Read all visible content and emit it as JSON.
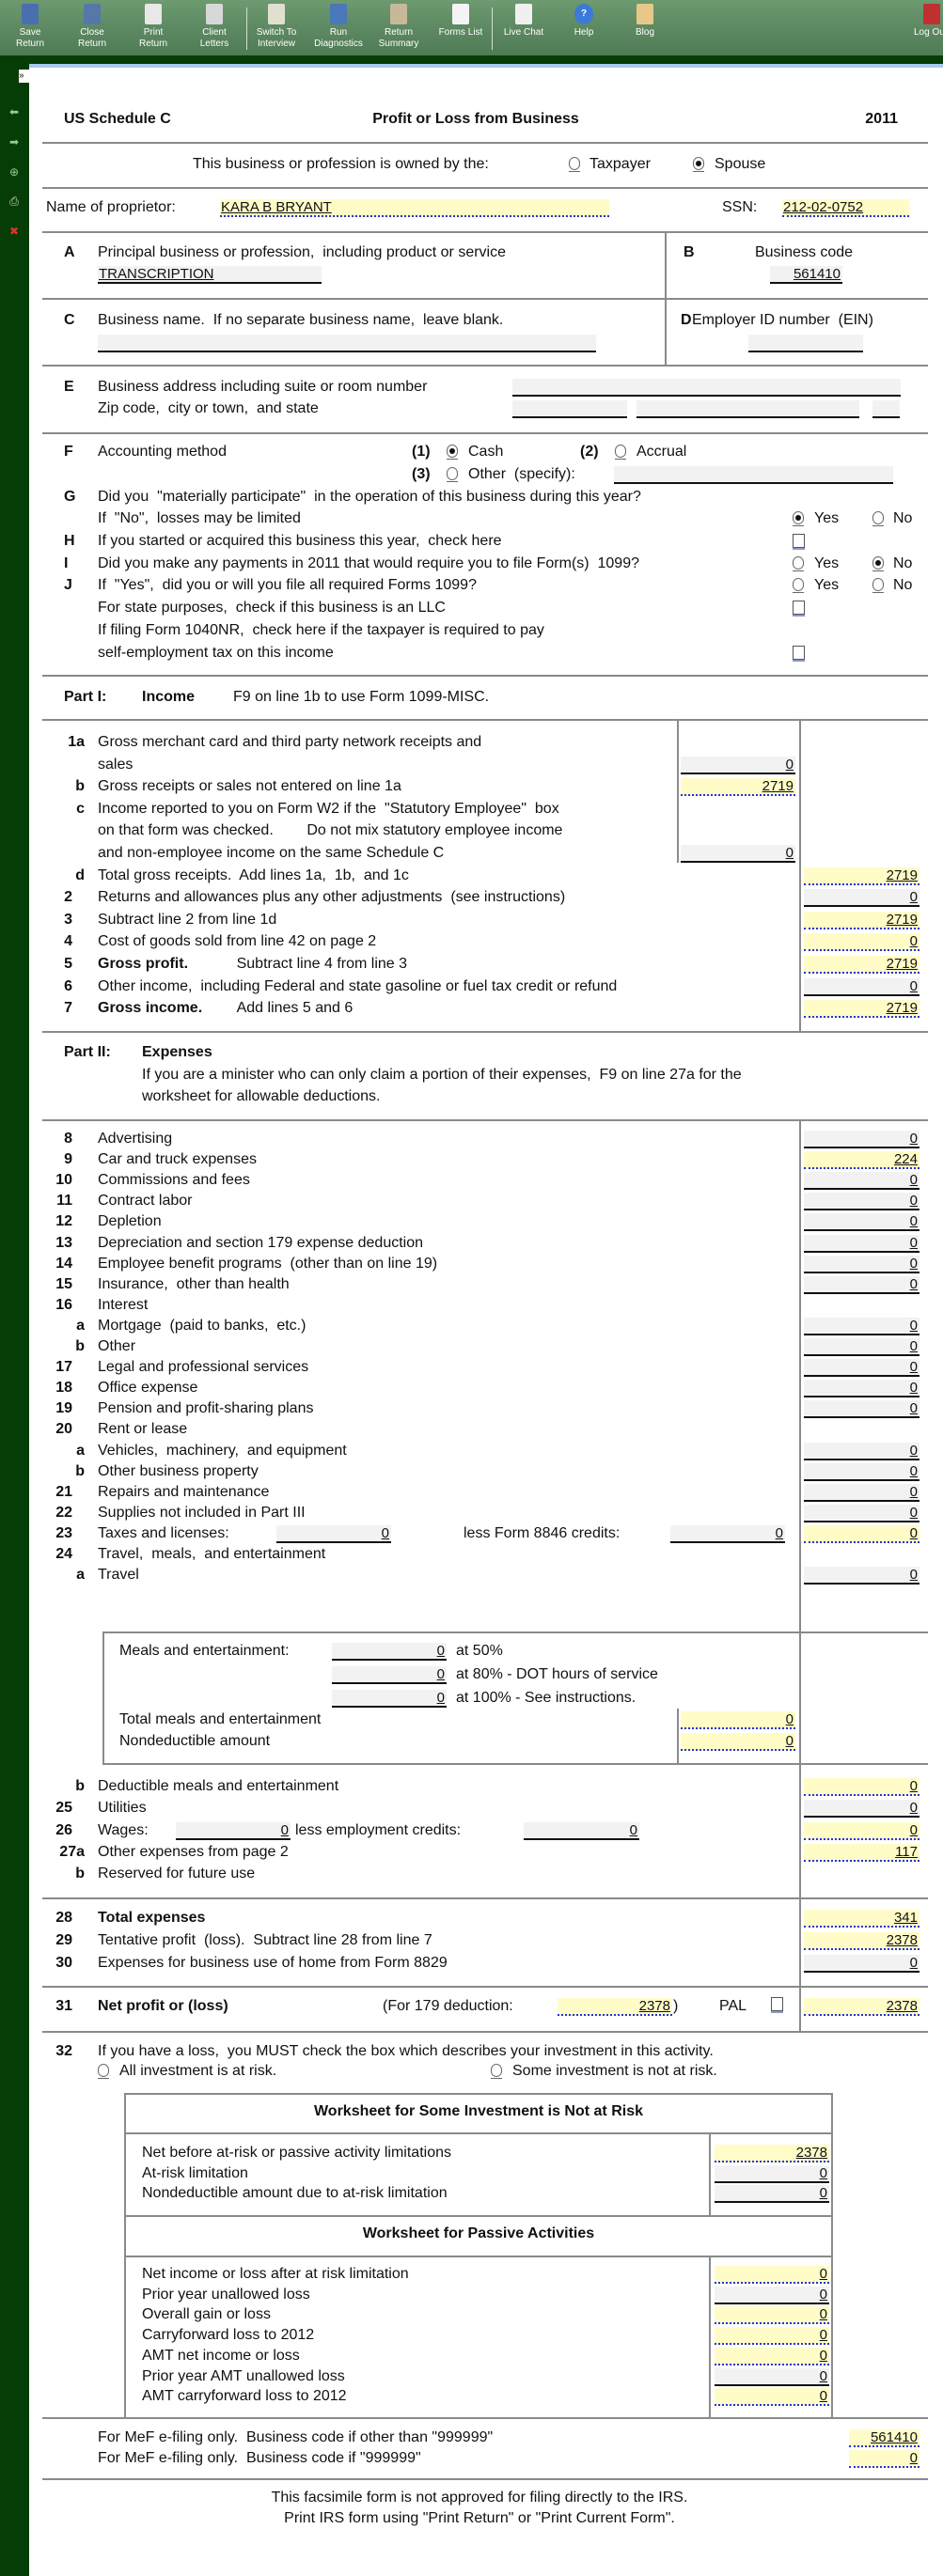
{
  "toolbar": {
    "buttons": [
      {
        "lines": [
          "Save",
          "Return"
        ],
        "icon": "save-icon",
        "color": "#4a6fb0"
      },
      {
        "lines": [
          "Close",
          "Return"
        ],
        "icon": "close-return-icon",
        "color": "#5577aa"
      },
      {
        "lines": [
          "Print",
          "Return"
        ],
        "icon": "print-icon",
        "color": "#e8e8e8"
      },
      {
        "lines": [
          "Client",
          "Letters"
        ],
        "icon": "envelope-icon",
        "color": "#d8d8d8"
      },
      {
        "lines": [
          "Switch To",
          "Interview"
        ],
        "icon": "switch-interview-icon",
        "color": "#e0e0d0"
      },
      {
        "lines": [
          "Run",
          "Diagnostics"
        ],
        "icon": "diagnostics-icon",
        "color": "#4a78b8"
      },
      {
        "lines": [
          "Return",
          "Summary"
        ],
        "icon": "clipboard-icon",
        "color": "#c8b89a"
      },
      {
        "lines": [
          "Forms List",
          ""
        ],
        "icon": "forms-list-icon",
        "color": "#f4f4f4"
      },
      {
        "lines": [
          "Live Chat",
          ""
        ],
        "icon": "chat-icon",
        "color": "#f0f0f0"
      },
      {
        "lines": [
          "Help",
          ""
        ],
        "icon": "help-icon",
        "color": "#3a7ad8"
      },
      {
        "lines": [
          "Blog",
          ""
        ],
        "icon": "blog-icon",
        "color": "#e8c888"
      }
    ],
    "logout": "Log Out"
  },
  "sidebar": {
    "expand": "»",
    "icons": [
      "back-arrow-icon",
      "forward-arrow-icon",
      "add-icon",
      "print-icon",
      "delete-icon"
    ]
  },
  "form": {
    "schedule": "US Schedule C",
    "title": "Profit or Loss from Business",
    "year": "2011",
    "owner": {
      "label": "This business or profession is owned by the:",
      "options": [
        "Taxpayer",
        "Spouse"
      ],
      "selected": "Spouse"
    },
    "proprietor": {
      "label": "Name of proprietor:",
      "value": "KARA B BRYANT",
      "ssn_label": "SSN:",
      "ssn": "212-02-0752"
    },
    "A": {
      "letter": "A",
      "label": "Principal business or profession,  including product or service",
      "value": "TRANSCRIPTION"
    },
    "B": {
      "letter": "B",
      "label": "Business code",
      "value": "561410"
    },
    "C": {
      "letter": "C",
      "label": "Business name.  If no separate business name,  leave blank.",
      "value": ""
    },
    "D": {
      "letter": "D",
      "label": "Employer ID number  (EIN)",
      "value": ""
    },
    "E": {
      "letter": "E",
      "label1": "Business address including suite or room number",
      "label2": "Zip code,  city or town,  and state"
    },
    "F": {
      "letter": "F",
      "label": "Accounting method",
      "options": [
        {
          "num": "(1)",
          "label": "Cash"
        },
        {
          "num": "(2)",
          "label": "Accrual"
        },
        {
          "num": "(3)",
          "label": "Other  (specify):"
        }
      ],
      "selected": "Cash",
      "other_value": ""
    },
    "yes": "Yes",
    "no": "No",
    "G": {
      "letter": "G",
      "line1": "Did you  \"materially participate\"  in the operation of this business during this year?",
      "line2": "If  \"No\",  losses may be limited",
      "answer": "Yes"
    },
    "H": {
      "letter": "H",
      "label": "If you started or acquired this business this year,  check here",
      "checked": false
    },
    "I": {
      "letter": "I",
      "label": "Did you make any payments in 2011 that would require you to file Form(s)  1099?",
      "answer": "No"
    },
    "J": {
      "letter": "J",
      "label": "If  \"Yes\",  did you or will you file all required Forms 1099?",
      "answer": ""
    },
    "llc": {
      "label": "For state purposes,  check if this business is an LLC",
      "checked": false
    },
    "nr": {
      "line1": "If filing Form 1040NR,  check here if the taxpayer is required to pay",
      "line2": "self-employment tax on this income",
      "checked": false
    }
  },
  "part1": {
    "part": "Part I:",
    "title": "Income",
    "note": "F9 on line 1b to use Form 1099-MISC.",
    "lines": [
      {
        "num": "1a",
        "text": [
          "Gross merchant card and third party network receipts and",
          "sales"
        ],
        "value": "0",
        "col": "mid",
        "kind": "gray"
      },
      {
        "num": "b",
        "text": [
          "Gross receipts or sales not entered on line 1a"
        ],
        "value": "2719",
        "col": "mid",
        "kind": "yellow"
      },
      {
        "num": "c",
        "text": [
          "Income reported to you on Form W2 if the  \"Statutory Employee\"  box",
          "on that form was checked.        Do not mix statutory employee income",
          "and non-employee income on the same Schedule C"
        ],
        "value": "0",
        "col": "mid",
        "kind": "gray"
      },
      {
        "num": "d",
        "text": [
          "Total gross receipts.  Add lines 1a,  1b,  and 1c"
        ],
        "value": "2719",
        "col": "right",
        "kind": "yellow"
      },
      {
        "num": "2",
        "text": [
          "Returns and allowances plus any other adjustments  (see instructions)"
        ],
        "value": "0",
        "col": "right",
        "kind": "gray"
      },
      {
        "num": "3",
        "text": [
          "Subtract line 2 from line 1d"
        ],
        "value": "2719",
        "col": "right",
        "kind": "yellow"
      },
      {
        "num": "4",
        "text": [
          "Cost of goods sold from line 42 on page 2"
        ],
        "value": "0",
        "col": "right",
        "kind": "yellow"
      },
      {
        "num": "5",
        "bold": "Gross profit.",
        "text": [
          "Subtract line 4 from line 3"
        ],
        "value": "2719",
        "col": "right",
        "kind": "yellow"
      },
      {
        "num": "6",
        "text": [
          "Other income,  including Federal and state gasoline or fuel tax credit or refund"
        ],
        "value": "0",
        "col": "right",
        "kind": "gray"
      },
      {
        "num": "7",
        "bold": "Gross income.",
        "text": [
          "Add lines 5 and 6"
        ],
        "value": "2719",
        "col": "right",
        "kind": "yellow"
      }
    ]
  },
  "part2": {
    "part": "Part II:",
    "title": "Expenses",
    "note": [
      "If you are a minister who can only claim a portion of their expenses,  F9 on line 27a for the",
      "worksheet for allowable deductions."
    ],
    "lines": [
      {
        "num": "8",
        "text": [
          "Advertising"
        ],
        "value": "0",
        "kind": "gray"
      },
      {
        "num": "9",
        "text": [
          "Car and truck expenses"
        ],
        "value": "224",
        "kind": "yellow"
      },
      {
        "num": "10",
        "text": [
          "Commissions and fees"
        ],
        "value": "0",
        "kind": "gray"
      },
      {
        "num": "11",
        "text": [
          "Contract labor"
        ],
        "value": "0",
        "kind": "gray"
      },
      {
        "num": "12",
        "text": [
          "Depletion"
        ],
        "value": "0",
        "kind": "gray"
      },
      {
        "num": "13",
        "text": [
          "Depreciation and section 179 expense deduction"
        ],
        "value": "0",
        "kind": "gray"
      },
      {
        "num": "14",
        "text": [
          "Employee benefit programs  (other than on line 19)"
        ],
        "value": "0",
        "kind": "gray"
      },
      {
        "num": "15",
        "text": [
          "Insurance,  other than health"
        ],
        "value": "0",
        "kind": "gray"
      },
      {
        "num": "16",
        "text": [
          "Interest"
        ]
      },
      {
        "num": "a",
        "text": [
          "Mortgage  (paid to banks,  etc.)"
        ],
        "value": "0",
        "kind": "gray"
      },
      {
        "num": "b",
        "text": [
          "Other"
        ],
        "value": "0",
        "kind": "gray"
      },
      {
        "num": "17",
        "text": [
          "Legal and professional services"
        ],
        "value": "0",
        "kind": "gray"
      },
      {
        "num": "18",
        "text": [
          "Office expense"
        ],
        "value": "0",
        "kind": "gray"
      },
      {
        "num": "19",
        "text": [
          "Pension and profit-sharing plans"
        ],
        "value": "0",
        "kind": "gray"
      },
      {
        "num": "20",
        "text": [
          "Rent or lease"
        ]
      },
      {
        "num": "a",
        "text": [
          "Vehicles,  machinery,  and equipment"
        ],
        "value": "0",
        "kind": "gray"
      },
      {
        "num": "b",
        "text": [
          "Other business property"
        ],
        "value": "0",
        "kind": "gray"
      },
      {
        "num": "21",
        "text": [
          "Repairs and maintenance"
        ],
        "value": "0",
        "kind": "gray"
      },
      {
        "num": "22",
        "text": [
          "Supplies not included in Part III"
        ],
        "value": "0",
        "kind": "gray"
      },
      {
        "num": "23",
        "text": [
          "Taxes and licenses:"
        ],
        "inline": [
          {
            "label": "",
            "value": "0"
          },
          {
            "label": "less Form 8846 credits:",
            "value": "0"
          }
        ],
        "value": "0",
        "kind": "yellow"
      },
      {
        "num": "24",
        "text": [
          "Travel,  meals,  and entertainment"
        ]
      },
      {
        "num": "a",
        "text": [
          "Travel"
        ],
        "value": "0",
        "kind": "gray"
      }
    ],
    "meals": {
      "label": "Meals and entertainment:",
      "rows": [
        {
          "value": "0",
          "suffix": "at 50%"
        },
        {
          "value": "0",
          "suffix": "at 80% - DOT hours of service"
        },
        {
          "value": "0",
          "suffix": "at 100% - See instructions."
        }
      ],
      "total_label": "Total meals and entertainment",
      "total": "0",
      "nondeductible_label": "Nondeductible amount",
      "nondeductible": "0"
    },
    "lines2": [
      {
        "num": "b",
        "text": [
          "Deductible meals and entertainment"
        ],
        "value": "0",
        "kind": "yellow"
      },
      {
        "num": "25",
        "text": [
          "Utilities"
        ],
        "value": "0",
        "kind": "gray"
      },
      {
        "num": "26",
        "text": [
          "Wages:"
        ],
        "inline": [
          {
            "label": "",
            "value": "0"
          },
          {
            "label": "less employment credits:",
            "value": "0"
          }
        ],
        "value": "0",
        "kind": "yellow"
      },
      {
        "num": "27a",
        "text": [
          "Other expenses from page 2"
        ],
        "value": "117",
        "kind": "yellow"
      },
      {
        "num": "b",
        "text": [
          "Reserved for future use"
        ]
      }
    ],
    "totals": [
      {
        "num": "28",
        "bold": "Total expenses",
        "text": [
          ""
        ],
        "value": "341",
        "kind": "yellow"
      },
      {
        "num": "29",
        "text": [
          "Tentative profit  (loss).  Subtract line 28 from line 7"
        ],
        "value": "2378",
        "kind": "yellow"
      },
      {
        "num": "30",
        "text": [
          "Expenses for business use of home from Form 8829"
        ],
        "value": "0",
        "kind": "gray"
      }
    ],
    "net": {
      "num": "31",
      "label": "Net profit or (loss)",
      "for179_label": "(For 179 deduction:",
      "for179": "2378",
      "close_paren": ")",
      "pal_label": "PAL",
      "pal_checked": false,
      "value": "2378"
    }
  },
  "line32": {
    "num": "32",
    "text": "If you have a loss,  you MUST check the box which describes your investment in this activity.",
    "options": [
      "All investment is at risk.",
      "Some investment is not at risk."
    ],
    "selected": ""
  },
  "worksheets": [
    {
      "title": "Worksheet for Some Investment is Not at Risk",
      "rows": [
        {
          "label": "Net before at-risk or passive activity limitations",
          "value": "2378",
          "kind": "yellow"
        },
        {
          "label": "At-risk limitation",
          "value": "0",
          "kind": "gray"
        },
        {
          "label": "Nondeductible amount due to at-risk limitation",
          "value": "0",
          "kind": "gray"
        }
      ]
    },
    {
      "title": "Worksheet for Passive Activities",
      "rows": [
        {
          "label": "Net income or loss after at risk limitation",
          "value": "0",
          "kind": "yellow"
        },
        {
          "label": "Prior year unallowed loss",
          "value": "0",
          "kind": "gray"
        },
        {
          "label": "Overall gain or loss",
          "value": "0",
          "kind": "yellow"
        },
        {
          "label": "Carryforward loss to 2012",
          "value": "0",
          "kind": "yellow"
        },
        {
          "label": "AMT net income or loss",
          "value": "0",
          "kind": "yellow"
        },
        {
          "label": "Prior year AMT unallowed loss",
          "value": "0",
          "kind": "gray"
        },
        {
          "label": "AMT carryforward loss to 2012",
          "value": "0",
          "kind": "yellow"
        }
      ]
    }
  ],
  "mef": [
    {
      "label": "For MeF e-filing only.  Business code if other than \"999999\"",
      "value": "561410"
    },
    {
      "label": "For MeF e-filing only.  Business code if \"999999\"",
      "value": "0"
    }
  ],
  "footer": [
    "This facsimile form is not approved for filing directly to the IRS.",
    "Print IRS form using \"Print Return\" or \"Print Current Form\"."
  ]
}
